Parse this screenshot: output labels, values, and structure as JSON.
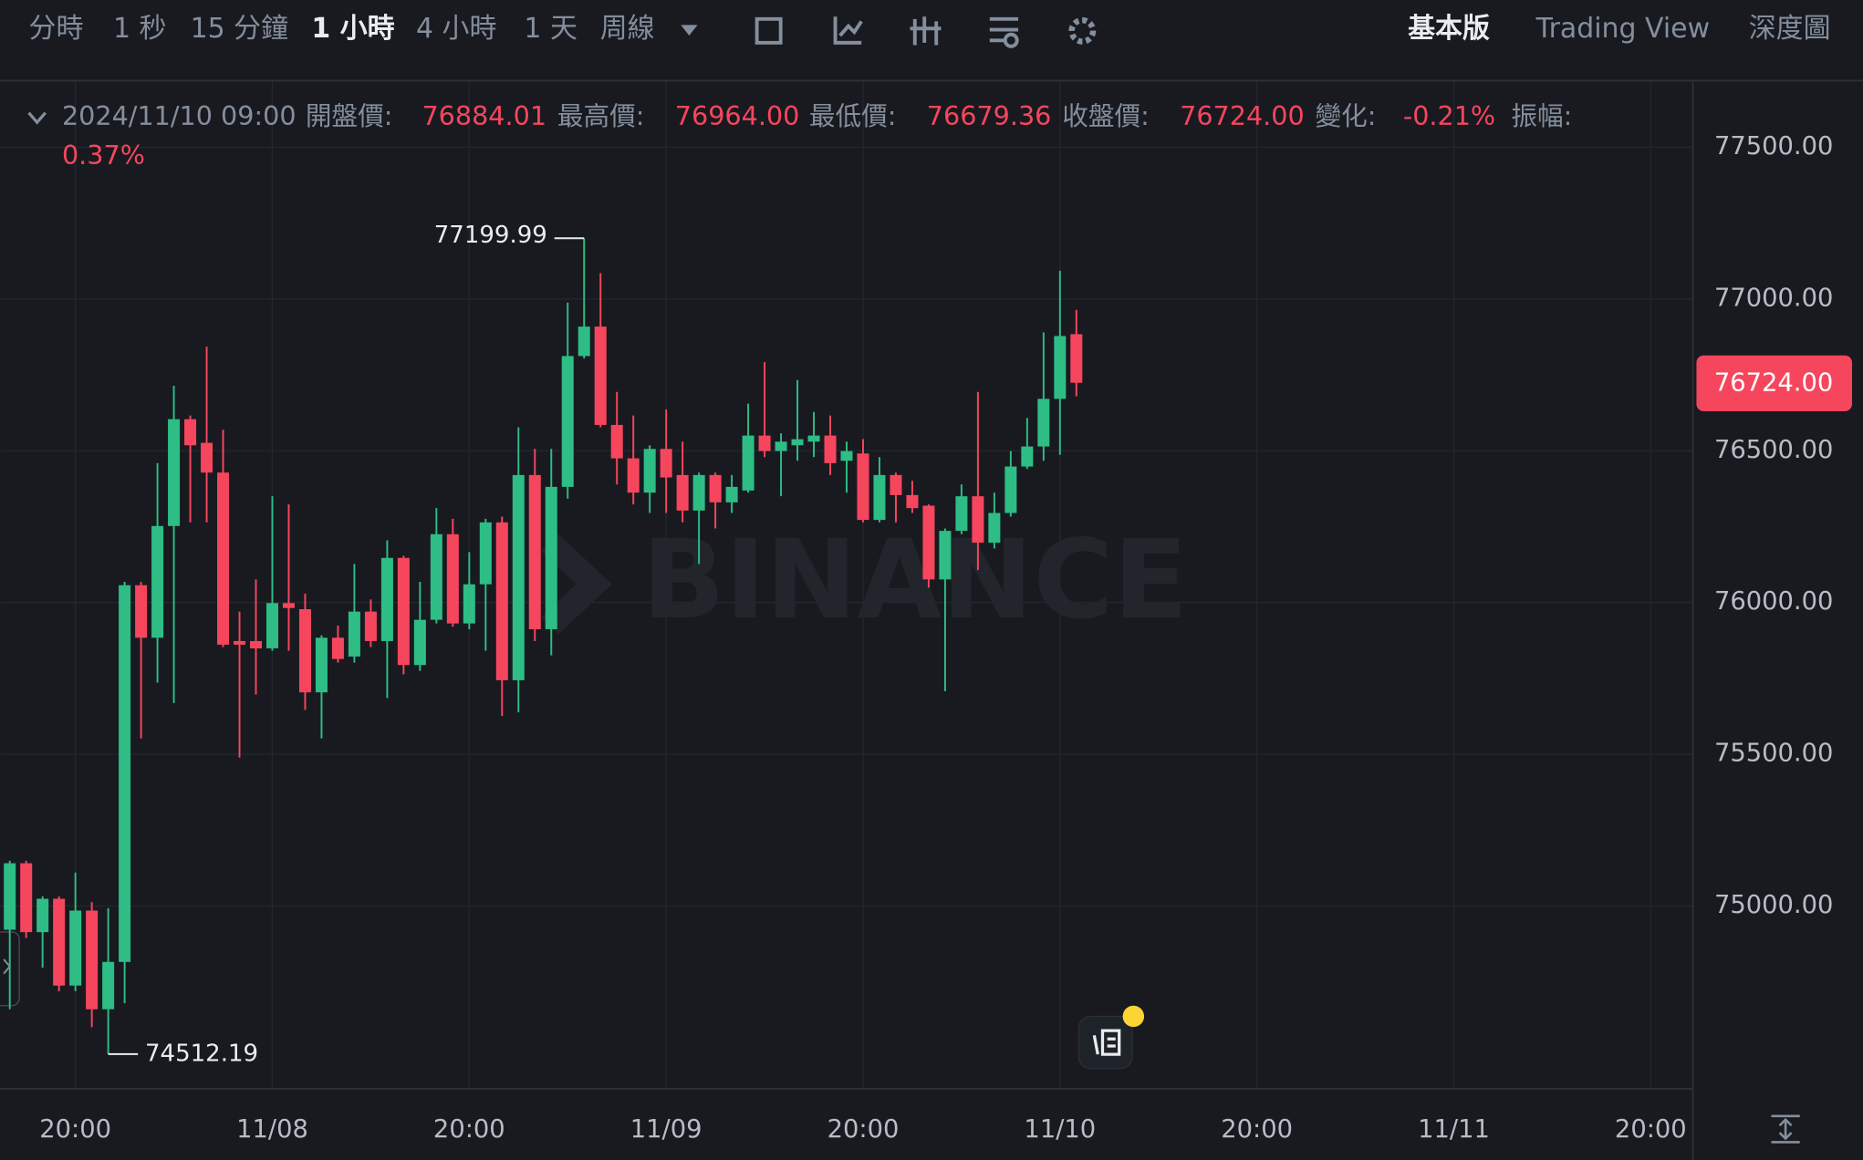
{
  "toolbar": {
    "intervals": [
      "分時",
      "1 秒",
      "15 分鐘",
      "1 小時",
      "4 小時",
      "1 天",
      "周線"
    ],
    "views": [
      "基本版",
      "Trading View",
      "深度圖"
    ]
  },
  "info": {
    "date": "2024/11/10 09:00",
    "items": [
      {
        "label": "開盤價:",
        "value": "76884.01"
      },
      {
        "label": "最高價:",
        "value": "76964.00"
      },
      {
        "label": "最低價:",
        "value": "76679.36"
      },
      {
        "label": "收盤價:",
        "value": "76724.00"
      },
      {
        "label": "變化:",
        "value": "-0.21%"
      },
      {
        "label": "振幅:",
        "value": "0.37%"
      }
    ]
  },
  "chart_data": {
    "type": "candlestick",
    "watermark": "BINANCE",
    "up_color": "#2ebd85",
    "down_color": "#f6465d",
    "grid": true,
    "open": [
      74922,
      75141,
      74914,
      75024,
      74738,
      74985,
      74660,
      74816,
      76057,
      75884,
      76252,
      76604,
      76526,
      76428,
      75873,
      75873,
      75849,
      75998,
      75978,
      75704,
      75884,
      75822,
      75970,
      75873,
      76147,
      75794,
      75943,
      76225,
      75931,
      76060,
      76264,
      75744,
      76420,
      75912,
      76381,
      76812,
      76909,
      76585,
      76475,
      76362,
      76506,
      76420,
      76303,
      76420,
      76330,
      76369,
      76550,
      76499,
      76518,
      76530,
      76550,
      76467,
      76491,
      76272,
      76420,
      76354,
      76319,
      76076,
      76236,
      76350,
      76197,
      76295,
      76448,
      76514,
      76671,
      76884.01
    ],
    "high": [
      75149,
      75149,
      75032,
      75032,
      75110,
      75013,
      74993,
      76068,
      76068,
      76459,
      76714,
      76616,
      76843,
      76569,
      75970,
      76076,
      76350,
      76323,
      76029,
      75892,
      75924,
      76127,
      76010,
      76205,
      76154,
      76068,
      76311,
      76276,
      76166,
      76276,
      76283,
      76577,
      76506,
      76506,
      76988,
      77199.99,
      77085,
      76694,
      76616,
      76518,
      76636,
      76530,
      76428,
      76428,
      76420,
      76655,
      76792,
      76557,
      76733,
      76628,
      76616,
      76530,
      76538,
      76479,
      76428,
      76401,
      76323,
      76244,
      76389,
      76694,
      76362,
      76499,
      76608,
      76890,
      77093,
      76964.0
    ],
    "low": [
      74660,
      74895,
      74797,
      74719,
      74719,
      74601,
      74512.19,
      74680,
      75552,
      75736,
      75669,
      76264,
      76264,
      75853,
      75489,
      75697,
      75841,
      75841,
      75646,
      75552,
      75802,
      75802,
      75853,
      75685,
      75763,
      75775,
      75931,
      75920,
      75912,
      75841,
      75626,
      75638,
      75873,
      75826,
      76342,
      76804,
      76577,
      76389,
      76323,
      76295,
      76295,
      76264,
      76127,
      76244,
      76295,
      76362,
      76479,
      76350,
      76467,
      76479,
      76420,
      76362,
      76264,
      76264,
      76264,
      76295,
      76049,
      75708,
      76225,
      76107,
      76178,
      76283,
      76440,
      76467,
      76487,
      76679.36
    ],
    "close": [
      75141,
      74914,
      75024,
      74738,
      74985,
      74660,
      74816,
      76057,
      75884,
      76252,
      76604,
      76518,
      76428,
      75861,
      75861,
      75849,
      75998,
      75982,
      75704,
      75884,
      75814,
      75970,
      75873,
      76147,
      75794,
      75943,
      76225,
      75931,
      76060,
      76264,
      75744,
      76420,
      75912,
      76381,
      76812,
      76909,
      76585,
      76475,
      76362,
      76506,
      76412,
      76303,
      76420,
      76330,
      76381,
      76550,
      76499,
      76530,
      76538,
      76550,
      76459,
      76499,
      76272,
      76420,
      76354,
      76311,
      76076,
      76236,
      76350,
      76197,
      76295,
      76448,
      76514,
      76671,
      76878,
      76724.0
    ],
    "xlim": [
      -0.58,
      102.57
    ],
    "xticks": [
      {
        "value": 4,
        "label": "20:00"
      },
      {
        "value": 16,
        "label": "11/08"
      },
      {
        "value": 28,
        "label": "20:00"
      },
      {
        "value": 40,
        "label": "11/09"
      },
      {
        "value": 52,
        "label": "20:00"
      },
      {
        "value": 64,
        "label": "11/10"
      },
      {
        "value": 76,
        "label": "20:00"
      },
      {
        "value": 88,
        "label": "11/11"
      },
      {
        "value": 100,
        "label": "20:00"
      }
    ],
    "ylim": [
      74398,
      77719
    ],
    "yticks": [
      {
        "value": 75000,
        "label": "75000.00"
      },
      {
        "value": 75500,
        "label": "75500.00"
      },
      {
        "value": 76000,
        "label": "76000.00"
      },
      {
        "value": 76500,
        "label": "76500.00"
      },
      {
        "value": 77000,
        "label": "77000.00"
      },
      {
        "value": 77500,
        "label": "77500.00"
      }
    ],
    "max_label": {
      "value": 77199.99,
      "label": "77199.99"
    },
    "min_label": {
      "value": 74512.19,
      "label": "74512.19"
    },
    "last_price": {
      "value": 76724.0,
      "label": "76724.00"
    }
  }
}
